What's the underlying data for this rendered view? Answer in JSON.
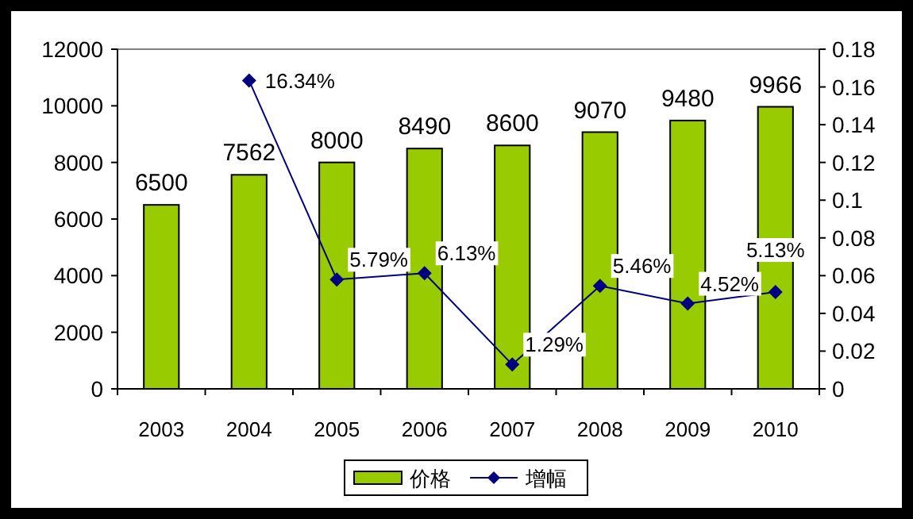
{
  "chart_data": {
    "type": "bar",
    "categories": [
      "2003",
      "2004",
      "2005",
      "2006",
      "2007",
      "2008",
      "2009",
      "2010"
    ],
    "series": [
      {
        "name": "价格",
        "color": "#99cc00",
        "values": [
          6500,
          7562,
          8000,
          8490,
          8600,
          9070,
          9480,
          9966
        ],
        "data_labels": true
      },
      {
        "name": "增幅",
        "type": "line",
        "axis": "y2",
        "color": "#000080",
        "marker": "diamond",
        "values": [
          null,
          0.1634,
          0.0579,
          0.0613,
          0.0129,
          0.0546,
          0.0452,
          0.0513
        ],
        "value_labels": [
          null,
          "16.34%",
          "5.79%",
          "6.13%",
          "1.29%",
          "5.46%",
          "4.52%",
          "5.13%"
        ]
      }
    ],
    "ylim": [
      0,
      12000
    ],
    "yticks": [
      0,
      2000,
      4000,
      6000,
      8000,
      10000,
      12000
    ],
    "y2lim": [
      0,
      0.18
    ],
    "y2ticks": [
      0,
      0.02,
      0.04,
      0.06,
      0.08,
      0.1,
      0.12,
      0.14,
      0.16,
      0.18
    ],
    "grid": false,
    "legend": "bottom"
  }
}
